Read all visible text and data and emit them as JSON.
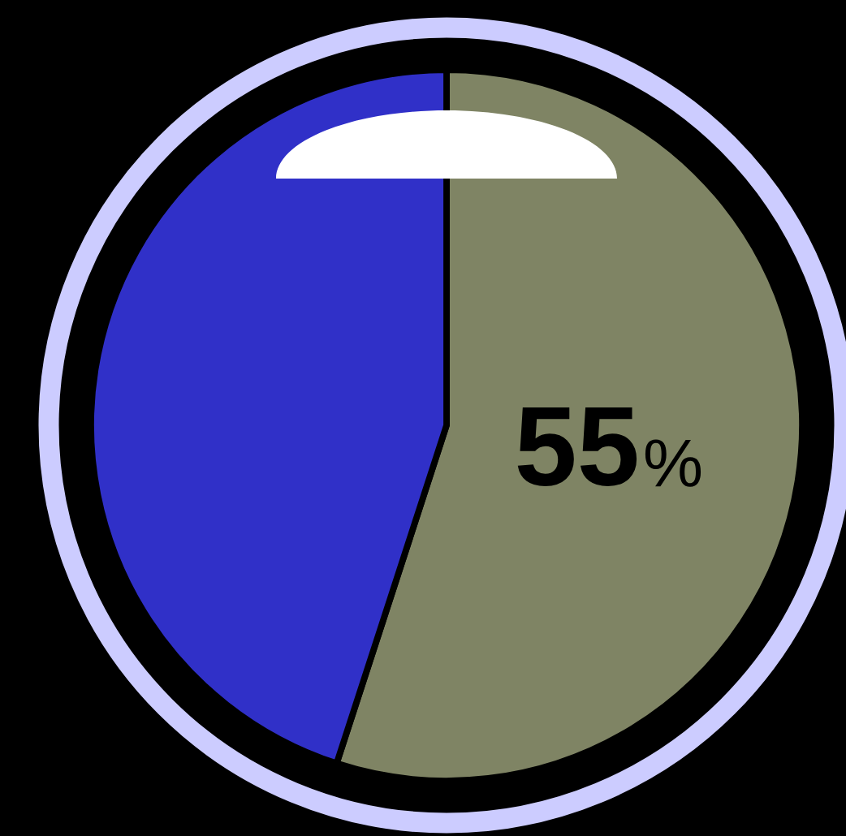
{
  "chart_data": {
    "type": "pie",
    "categories": [
      null,
      null
    ],
    "values": [
      55,
      45
    ],
    "colors": [
      "#7f8464",
      "#3030c8"
    ],
    "value_labels": [
      "55%",
      null
    ]
  }
}
